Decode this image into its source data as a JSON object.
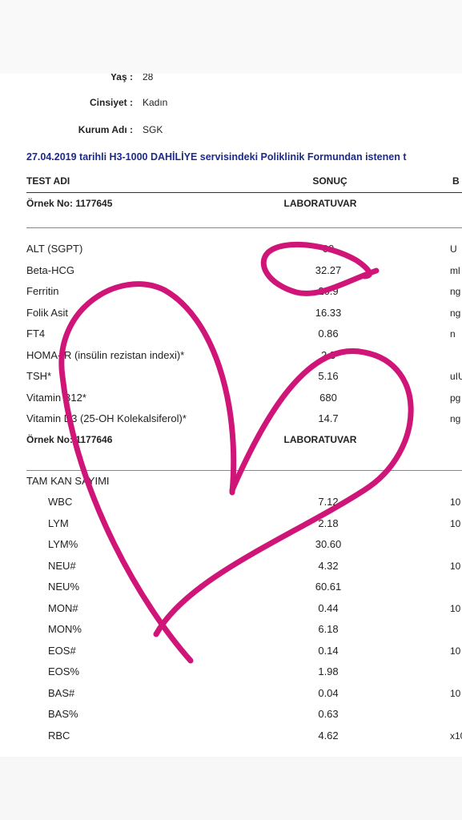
{
  "patient": [
    {
      "label": "Yaş :",
      "value": "28"
    },
    {
      "label": "Cinsiyet :",
      "value": "Kadın"
    },
    {
      "label": "Kurum Adı :",
      "value": "SGK"
    }
  ],
  "header": "27.04.2019 tarihli H3-1000 DAHİLİYE servisindeki Poliklinik Formundan istenen t",
  "columns": [
    "TEST ADI",
    "SONUÇ",
    "B"
  ],
  "sections": [
    {
      "sample": "Örnek No: 1177645",
      "lab": "LABORATUVAR",
      "rows": [
        [
          "ALT (SGPT)",
          "00",
          "U"
        ],
        [
          "Beta-HCG",
          "32.27",
          "ml"
        ],
        [
          "Ferritin",
          "20.9",
          "ng"
        ],
        [
          "Folik Asit",
          "16.33",
          "ng"
        ],
        [
          "FT4",
          "0.86",
          "n"
        ],
        [
          "HOMA-İR (insülin rezistan indexi)*",
          "2.3",
          ""
        ],
        [
          "TSH*",
          "5.16",
          "uIU"
        ],
        [
          "Vitamin B12*",
          "680",
          "pg"
        ],
        [
          "Vitamin D3 (25-OH Kolekalsiferol)*",
          "14.7",
          "ng"
        ]
      ]
    },
    {
      "sample": "Örnek No: 1177646",
      "lab": "LABORATUVAR",
      "group": "TAM KAN SAYIMI",
      "rows": [
        [
          "WBC",
          "7.12",
          "10"
        ],
        [
          "LYM",
          "2.18",
          "10"
        ],
        [
          "LYM%",
          "30.60",
          ""
        ],
        [
          "NEU#",
          "4.32",
          "10"
        ],
        [
          "NEU%",
          "60.61",
          ""
        ],
        [
          "MON#",
          "0.44",
          "10"
        ],
        [
          "MON%",
          "6.18",
          ""
        ],
        [
          "EOS#",
          "0.14",
          "10"
        ],
        [
          "EOS%",
          "1.98",
          ""
        ],
        [
          "BAS#",
          "0.04",
          "10"
        ],
        [
          "BAS%",
          "0.63",
          ""
        ],
        [
          "RBC",
          "4.62",
          "x10"
        ]
      ]
    }
  ]
}
